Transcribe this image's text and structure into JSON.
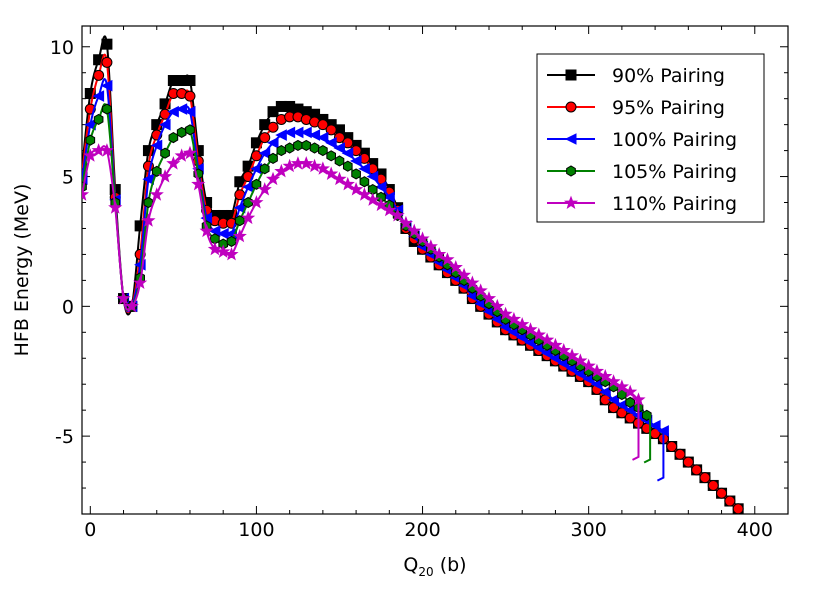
{
  "chart_data": {
    "type": "line",
    "title": "",
    "xlabel": "Q",
    "xlabel_sub": "20",
    "xlabel_unit": " (b)",
    "ylabel": "HFB Energy (MeV)",
    "xlim": [
      -5,
      420
    ],
    "ylim": [
      -8,
      10.8
    ],
    "xticks": [
      0,
      100,
      200,
      300,
      400
    ],
    "xtick_labels": [
      "0",
      "100",
      "200",
      "300",
      "400"
    ],
    "yticks": [
      -5,
      0,
      5,
      10
    ],
    "ytick_labels": [
      "-5",
      "0",
      "5",
      "10"
    ],
    "grid": false,
    "legend_position": "top-right",
    "series": [
      {
        "name": "90% Pairing",
        "color": "#000000",
        "marker": "square",
        "x": [
          -5,
          0,
          5,
          10,
          15,
          20,
          25,
          30,
          35,
          40,
          45,
          50,
          55,
          60,
          65,
          70,
          75,
          80,
          85,
          90,
          95,
          100,
          105,
          110,
          115,
          120,
          125,
          130,
          135,
          140,
          145,
          150,
          155,
          160,
          165,
          170,
          175,
          180,
          185,
          190,
          195,
          200,
          205,
          210,
          215,
          220,
          225,
          230,
          235,
          240,
          245,
          250,
          255,
          260,
          265,
          270,
          275,
          280,
          285,
          290,
          295,
          300,
          305,
          310,
          315,
          320,
          325,
          330,
          335,
          340,
          345,
          350,
          355,
          360,
          365,
          370,
          375,
          380,
          385,
          390
        ],
        "y": [
          5.3,
          8.2,
          9.5,
          10.1,
          4.5,
          0.3,
          0.0,
          3.1,
          6.0,
          7.0,
          7.8,
          8.7,
          8.7,
          8.7,
          6.0,
          4.0,
          3.5,
          3.5,
          3.5,
          4.8,
          5.4,
          6.3,
          7.0,
          7.5,
          7.7,
          7.7,
          7.6,
          7.5,
          7.4,
          7.2,
          7.0,
          6.8,
          6.5,
          6.2,
          5.9,
          5.5,
          5.1,
          4.5,
          3.8,
          3.0,
          2.5,
          2.2,
          1.9,
          1.6,
          1.3,
          1.0,
          0.7,
          0.3,
          0.0,
          -0.3,
          -0.6,
          -0.9,
          -1.1,
          -1.3,
          -1.5,
          -1.7,
          -1.9,
          -2.1,
          -2.3,
          -2.5,
          -2.7,
          -2.9,
          -3.2,
          -3.6,
          -3.9,
          -4.1,
          -4.3,
          -4.5,
          -4.7,
          -4.9,
          -5.1,
          -5.4,
          -5.7,
          -6.0,
          -6.3,
          -6.6,
          -6.9,
          -7.2,
          -7.5,
          -7.8
        ]
      },
      {
        "name": "95% Pairing",
        "color": "#ff0000",
        "marker": "circle",
        "x": [
          -5,
          0,
          5,
          10,
          15,
          20,
          25,
          30,
          35,
          40,
          45,
          50,
          55,
          60,
          65,
          70,
          75,
          80,
          85,
          90,
          95,
          100,
          105,
          110,
          115,
          120,
          125,
          130,
          135,
          140,
          145,
          150,
          155,
          160,
          165,
          170,
          175,
          180,
          185,
          190,
          195,
          200,
          205,
          210,
          215,
          220,
          225,
          230,
          235,
          240,
          245,
          250,
          255,
          260,
          265,
          270,
          275,
          280,
          285,
          290,
          295,
          300,
          305,
          310,
          315,
          320,
          325,
          330,
          335,
          340,
          345,
          350,
          355,
          360,
          365,
          370,
          375,
          380,
          385,
          390
        ],
        "y": [
          5.1,
          7.6,
          8.9,
          9.4,
          4.2,
          0.3,
          0.0,
          2.0,
          5.4,
          6.6,
          7.4,
          8.2,
          8.2,
          8.1,
          5.6,
          3.7,
          3.3,
          3.2,
          3.2,
          4.3,
          5.0,
          5.8,
          6.5,
          6.9,
          7.2,
          7.3,
          7.3,
          7.2,
          7.1,
          7.0,
          6.8,
          6.5,
          6.3,
          6.0,
          5.7,
          5.3,
          4.9,
          4.4,
          3.7,
          3.0,
          2.6,
          2.2,
          1.9,
          1.6,
          1.3,
          1.0,
          0.7,
          0.3,
          0.0,
          -0.3,
          -0.6,
          -0.9,
          -1.1,
          -1.3,
          -1.5,
          -1.7,
          -1.9,
          -2.1,
          -2.3,
          -2.5,
          -2.7,
          -2.9,
          -3.2,
          -3.6,
          -3.9,
          -4.1,
          -4.3,
          -4.5,
          -4.7,
          -4.9,
          -5.1,
          -5.4,
          -5.7,
          -6.0,
          -6.3,
          -6.6,
          -6.9,
          -7.2,
          -7.5,
          -7.8
        ]
      },
      {
        "name": "100% Pairing",
        "color": "#0000ff",
        "marker": "triangle-left",
        "x": [
          -5,
          0,
          5,
          10,
          15,
          20,
          25,
          30,
          35,
          40,
          45,
          50,
          55,
          60,
          65,
          70,
          75,
          80,
          85,
          90,
          95,
          100,
          105,
          110,
          115,
          120,
          125,
          130,
          135,
          140,
          145,
          150,
          155,
          160,
          165,
          170,
          175,
          180,
          185,
          190,
          195,
          200,
          205,
          210,
          215,
          220,
          225,
          230,
          235,
          240,
          245,
          250,
          255,
          260,
          265,
          270,
          275,
          280,
          285,
          290,
          295,
          300,
          305,
          310,
          315,
          320,
          325,
          330,
          335,
          340,
          345
        ],
        "y": [
          4.9,
          7.0,
          8.1,
          8.5,
          4.1,
          0.3,
          0.0,
          1.6,
          4.9,
          6.2,
          7.0,
          7.5,
          7.6,
          7.5,
          5.3,
          3.4,
          2.9,
          2.8,
          2.8,
          3.8,
          4.6,
          5.3,
          5.9,
          6.3,
          6.6,
          6.7,
          6.7,
          6.7,
          6.6,
          6.5,
          6.3,
          6.1,
          5.9,
          5.6,
          5.3,
          5.0,
          4.6,
          4.2,
          3.7,
          3.1,
          2.7,
          2.3,
          2.0,
          1.7,
          1.4,
          1.1,
          0.8,
          0.4,
          0.1,
          -0.2,
          -0.5,
          -0.8,
          -1.0,
          -1.2,
          -1.4,
          -1.6,
          -1.8,
          -2.0,
          -2.2,
          -2.4,
          -2.6,
          -2.8,
          -3.0,
          -3.3,
          -3.6,
          -3.8,
          -4.0,
          -4.2,
          -4.4,
          -4.6,
          -4.8
        ]
      },
      {
        "name": "105% Pairing",
        "color": "#008000",
        "marker": "hexagon",
        "x": [
          -5,
          0,
          5,
          10,
          15,
          20,
          25,
          30,
          35,
          40,
          45,
          50,
          55,
          60,
          65,
          70,
          75,
          80,
          85,
          90,
          95,
          100,
          105,
          110,
          115,
          120,
          125,
          130,
          135,
          140,
          145,
          150,
          155,
          160,
          165,
          170,
          175,
          180,
          185,
          190,
          195,
          200,
          205,
          210,
          215,
          220,
          225,
          230,
          235,
          240,
          245,
          250,
          255,
          260,
          265,
          270,
          275,
          280,
          285,
          290,
          295,
          300,
          305,
          310,
          315,
          320,
          325,
          330,
          335
        ],
        "y": [
          4.6,
          6.4,
          7.2,
          7.6,
          4.0,
          0.3,
          0.0,
          1.1,
          4.0,
          5.2,
          5.9,
          6.5,
          6.7,
          6.8,
          5.1,
          3.1,
          2.6,
          2.4,
          2.5,
          3.3,
          4.0,
          4.7,
          5.3,
          5.7,
          6.0,
          6.1,
          6.2,
          6.2,
          6.1,
          6.0,
          5.8,
          5.6,
          5.4,
          5.1,
          4.8,
          4.5,
          4.2,
          3.9,
          3.5,
          3.1,
          2.8,
          2.5,
          2.2,
          1.9,
          1.6,
          1.3,
          1.0,
          0.7,
          0.4,
          0.1,
          -0.2,
          -0.5,
          -0.7,
          -0.9,
          -1.1,
          -1.3,
          -1.5,
          -1.7,
          -1.9,
          -2.1,
          -2.3,
          -2.5,
          -2.7,
          -2.9,
          -3.1,
          -3.4,
          -3.7,
          -3.9,
          -4.2
        ]
      },
      {
        "name": "110% Pairing",
        "color": "#bf00bf",
        "marker": "star",
        "x": [
          -5,
          0,
          5,
          10,
          15,
          20,
          25,
          30,
          35,
          40,
          45,
          50,
          55,
          60,
          65,
          70,
          75,
          80,
          85,
          90,
          95,
          100,
          105,
          110,
          115,
          120,
          125,
          130,
          135,
          140,
          145,
          150,
          155,
          160,
          165,
          170,
          175,
          180,
          185,
          190,
          195,
          200,
          205,
          210,
          215,
          220,
          225,
          230,
          235,
          240,
          245,
          250,
          255,
          260,
          265,
          270,
          275,
          280,
          285,
          290,
          295,
          300,
          305,
          310,
          315,
          320,
          325,
          330
        ],
        "y": [
          4.3,
          5.8,
          6.0,
          6.0,
          3.8,
          0.3,
          0.0,
          0.9,
          3.3,
          4.3,
          5.0,
          5.5,
          5.8,
          5.9,
          4.7,
          2.9,
          2.2,
          2.1,
          2.0,
          2.7,
          3.4,
          4.0,
          4.5,
          4.9,
          5.2,
          5.4,
          5.5,
          5.5,
          5.4,
          5.3,
          5.1,
          4.9,
          4.7,
          4.5,
          4.3,
          4.1,
          3.9,
          3.7,
          3.5,
          3.2,
          2.9,
          2.6,
          2.3,
          2.0,
          1.8,
          1.5,
          1.2,
          0.9,
          0.6,
          0.3,
          0.0,
          -0.3,
          -0.5,
          -0.7,
          -0.9,
          -1.1,
          -1.3,
          -1.5,
          -1.7,
          -1.9,
          -2.1,
          -2.3,
          -2.5,
          -2.7,
          -2.9,
          -3.1,
          -3.3,
          -3.6
        ]
      }
    ],
    "terminal_drops": [
      {
        "series": "100% Pairing",
        "x": 345,
        "y_to": -6.6
      },
      {
        "series": "105% Pairing",
        "x": 337,
        "y_to": -5.9
      },
      {
        "series": "110% Pairing",
        "x": 330,
        "y_to": -5.8
      }
    ]
  }
}
